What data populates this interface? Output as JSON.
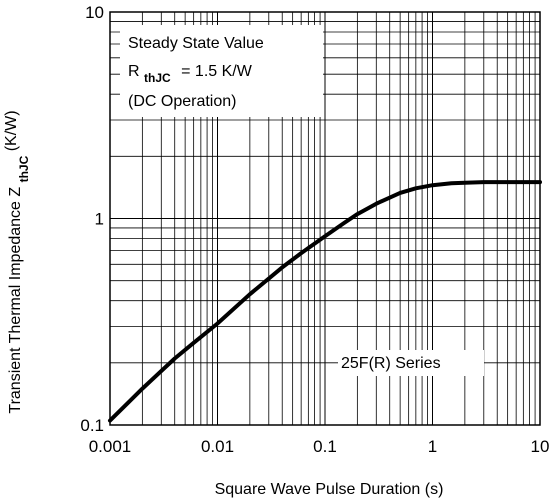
{
  "chart_data": {
    "type": "line",
    "title": "",
    "xlabel": "Square Wave Pulse Duration (s)",
    "ylabel": {
      "main": "Transient Thermal Impedance Z",
      "sub": "thJC",
      "unit": "(K/W)"
    },
    "x_scale": "log",
    "y_scale": "log",
    "xlim": [
      0.001,
      10
    ],
    "ylim": [
      0.1,
      10
    ],
    "x_ticks": [
      "0.001",
      "0.01",
      "0.1",
      "1",
      "10"
    ],
    "y_ticks": [
      "0.1",
      "1",
      "10"
    ],
    "grid": true,
    "series": [
      {
        "x": [
          0.001,
          0.002,
          0.004,
          0.006,
          0.01,
          0.02,
          0.04,
          0.06,
          0.1,
          0.15,
          0.2,
          0.3,
          0.5,
          0.7,
          1,
          1.5,
          2,
          3,
          5,
          10
        ],
        "y": [
          0.105,
          0.15,
          0.21,
          0.25,
          0.31,
          0.43,
          0.58,
          0.68,
          0.82,
          0.95,
          1.05,
          1.18,
          1.33,
          1.4,
          1.45,
          1.48,
          1.49,
          1.5,
          1.5,
          1.5
        ]
      }
    ],
    "annotations": {
      "steady_state_line1": "Steady State Value",
      "rthjc_main": "R",
      "rthjc_sub": "thJC",
      "rthjc_value": "= 1.5 K/W",
      "dc_operation": "(DC Operation)",
      "series_label": "25F(R) Series"
    }
  }
}
